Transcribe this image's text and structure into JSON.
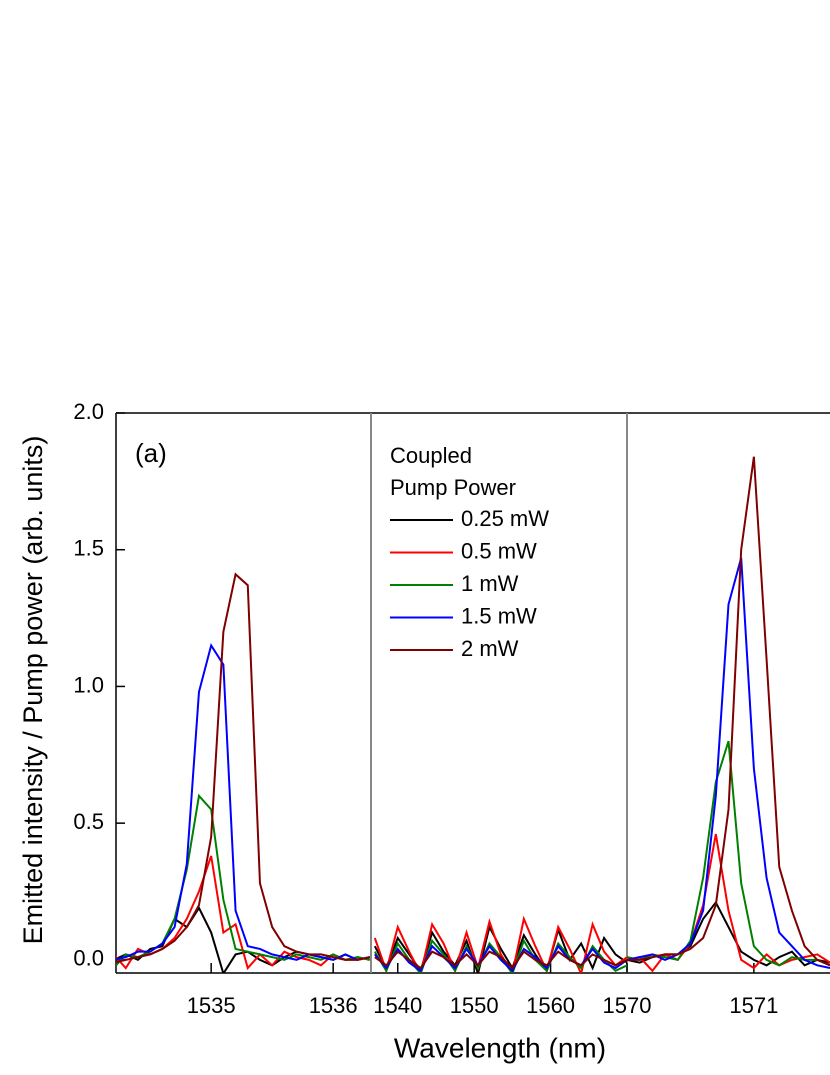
{
  "chart_data": {
    "type": "line",
    "ylabel": "Emitted intensity / Pump power (arb. units)",
    "xlabel": "Wavelength (nm)",
    "annotation": "(a)",
    "legend_title": [
      "Coupled",
      "Pump Power"
    ],
    "ylim": [
      -0.048,
      2.0
    ],
    "yticks": [
      {
        "value": 0,
        "label": "0.0"
      },
      0.5,
      {
        "value": 1,
        "label": "1.0"
      },
      1.5,
      {
        "value": 2,
        "label": "2.0"
      }
    ],
    "series": [
      {
        "name": "0.25 mW",
        "color": "#000000"
      },
      {
        "name": "0.5 mW",
        "color": "#ff0000"
      },
      {
        "name": "1 mW",
        "color": "#008000"
      },
      {
        "name": "1.5 mW",
        "color": "#0000ff"
      },
      {
        "name": "2 mW",
        "color": "#800000"
      }
    ],
    "panels": [
      {
        "xlim": [
          1534.22,
          1536.31
        ],
        "xticks": [
          1535,
          1536
        ],
        "x": [
          1534.2,
          1534.3,
          1534.4,
          1534.5,
          1534.6,
          1534.7,
          1534.8,
          1534.9,
          1535.0,
          1535.1,
          1535.2,
          1535.3,
          1535.4,
          1535.5,
          1535.6,
          1535.7,
          1535.8,
          1535.9,
          1536.0,
          1536.1,
          1536.2,
          1536.3
        ],
        "series": [
          {
            "values": [
              0.0,
              0.02,
              0.0,
              0.04,
              0.05,
              0.15,
              0.12,
              0.19,
              0.1,
              -0.05,
              0.02,
              0.03,
              0.0,
              -0.02,
              0.01,
              0.03,
              0.02,
              0.01,
              0.0,
              0.02,
              0.0,
              0.01
            ]
          },
          {
            "values": [
              0.02,
              -0.03,
              0.04,
              0.02,
              0.04,
              0.08,
              0.15,
              0.25,
              0.38,
              0.1,
              0.13,
              -0.03,
              0.02,
              -0.02,
              0.03,
              0.01,
              0.0,
              -0.02,
              0.02,
              0.0,
              0.01,
              0.0
            ]
          },
          {
            "values": [
              -0.03,
              0.02,
              0.01,
              0.03,
              0.06,
              0.15,
              0.33,
              0.6,
              0.55,
              0.22,
              0.04,
              0.03,
              0.02,
              0.01,
              0.0,
              0.02,
              0.01,
              0.0,
              0.02,
              0.0,
              0.01,
              0.0
            ]
          },
          {
            "values": [
              0.0,
              0.01,
              0.03,
              0.03,
              0.06,
              0.12,
              0.35,
              0.98,
              1.15,
              1.08,
              0.18,
              0.05,
              0.04,
              0.02,
              0.01,
              0.0,
              0.02,
              0.01,
              0.0,
              0.02,
              0.0,
              0.01
            ]
          },
          {
            "values": [
              -0.01,
              0.0,
              0.01,
              0.02,
              0.04,
              0.07,
              0.12,
              0.2,
              0.45,
              1.2,
              1.41,
              1.37,
              0.28,
              0.12,
              0.05,
              0.03,
              0.02,
              0.02,
              0.01,
              0.0,
              0.0,
              0.01
            ]
          }
        ]
      },
      {
        "xlim": [
          1536.5,
          1570
        ],
        "xticks": [
          1540,
          1550,
          1560,
          1570
        ],
        "x": [
          1537,
          1538.5,
          1540,
          1541.5,
          1543,
          1544.5,
          1546,
          1547.5,
          1549,
          1550.5,
          1552,
          1553.5,
          1555,
          1556.5,
          1558,
          1559.5,
          1561,
          1562.5,
          1564,
          1565.5,
          1567,
          1568.5,
          1570
        ],
        "series": [
          {
            "values": [
              0.05,
              -0.03,
              0.08,
              0.02,
              -0.04,
              0.1,
              0.03,
              -0.02,
              0.07,
              -0.05,
              0.12,
              0.04,
              -0.03,
              0.09,
              0.02,
              -0.04,
              0.11,
              0.0,
              0.06,
              -0.03,
              0.08,
              0.02,
              -0.01
            ]
          },
          {
            "values": [
              0.08,
              -0.04,
              0.12,
              0.03,
              -0.05,
              0.13,
              0.06,
              -0.04,
              0.1,
              -0.03,
              0.14,
              0.02,
              -0.05,
              0.15,
              0.05,
              -0.04,
              0.12,
              0.04,
              -0.05,
              0.13,
              0.03,
              -0.02,
              0.01
            ]
          },
          {
            "values": [
              0.03,
              -0.04,
              0.06,
              0.0,
              -0.05,
              0.07,
              0.02,
              -0.04,
              0.05,
              -0.03,
              0.06,
              0.01,
              -0.05,
              0.07,
              0.0,
              -0.04,
              0.06,
              0.01,
              -0.03,
              0.05,
              0.0,
              -0.04,
              -0.02
            ]
          },
          {
            "values": [
              0.02,
              -0.03,
              0.04,
              -0.01,
              -0.04,
              0.05,
              0.01,
              -0.03,
              0.04,
              -0.02,
              0.05,
              0.0,
              -0.04,
              0.04,
              0.01,
              -0.03,
              0.05,
              0.0,
              -0.02,
              0.04,
              -0.01,
              -0.03,
              0.0
            ]
          },
          {
            "values": [
              0.01,
              -0.02,
              0.03,
              0.0,
              -0.03,
              0.03,
              0.01,
              -0.02,
              0.02,
              -0.02,
              0.03,
              0.01,
              -0.03,
              0.03,
              0.0,
              -0.02,
              0.03,
              0.0,
              -0.02,
              0.02,
              0.0,
              -0.02,
              0.0
            ]
          }
        ]
      },
      {
        "xlim": [
          1570,
          1571.6
        ],
        "xticks": [
          1571
        ],
        "x": [
          1570.0,
          1570.1,
          1570.2,
          1570.3,
          1570.4,
          1570.5,
          1570.6,
          1570.7,
          1570.8,
          1570.9,
          1571.0,
          1571.1,
          1571.2,
          1571.3,
          1571.4,
          1571.5,
          1571.6
        ],
        "series": [
          {
            "values": [
              0.0,
              -0.01,
              0.01,
              0.02,
              0.02,
              0.05,
              0.15,
              0.21,
              0.12,
              0.03,
              0.0,
              -0.02,
              0.01,
              0.03,
              -0.02,
              0.0,
              -0.01
            ]
          },
          {
            "values": [
              0.0,
              0.01,
              -0.04,
              0.02,
              0.0,
              0.06,
              0.2,
              0.46,
              0.18,
              0.0,
              -0.03,
              0.02,
              -0.02,
              0.0,
              0.01,
              0.02,
              -0.01
            ]
          },
          {
            "values": [
              0.01,
              0.0,
              0.02,
              0.01,
              0.0,
              0.07,
              0.3,
              0.65,
              0.8,
              0.28,
              0.05,
              0.0,
              -0.02,
              0.01,
              0.0,
              0.0,
              -0.02
            ]
          },
          {
            "values": [
              0.0,
              0.01,
              0.02,
              0.0,
              0.02,
              0.06,
              0.18,
              0.6,
              1.3,
              1.47,
              0.7,
              0.3,
              0.1,
              0.05,
              0.0,
              -0.02,
              -0.03
            ]
          },
          {
            "values": [
              0.0,
              0.0,
              0.01,
              0.02,
              0.02,
              0.04,
              0.08,
              0.2,
              0.55,
              1.5,
              1.84,
              1.1,
              0.34,
              0.18,
              0.05,
              0.0,
              -0.02
            ]
          }
        ]
      }
    ]
  }
}
